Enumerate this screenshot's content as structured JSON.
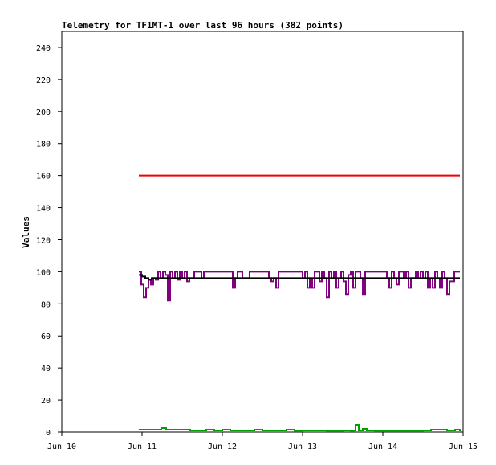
{
  "chart_data": {
    "type": "line",
    "title": "Telemetry for TF1MT-1 over last 96 hours (382 points)",
    "xlabel": "",
    "ylabel": "Values",
    "xlim": [
      "Jun 10",
      "Jun 15"
    ],
    "x_ticks": [
      "Jun 10",
      "Jun 11",
      "Jun 12",
      "Jun 13",
      "Jun 14",
      "Jun 15"
    ],
    "ylim": [
      0,
      250
    ],
    "y_ticks": [
      0,
      20,
      40,
      60,
      80,
      100,
      120,
      140,
      160,
      180,
      200,
      220,
      240
    ],
    "grid": false,
    "legend": "none",
    "series": [
      {
        "color": "#ee0000",
        "x": [
          10.96,
          14.96
        ],
        "values": [
          160,
          160
        ]
      },
      {
        "color": "#800080",
        "x": [
          10.96,
          10.99,
          11.02,
          11.05,
          11.08,
          11.11,
          11.14,
          11.17,
          11.2,
          11.23,
          11.26,
          11.29,
          11.32,
          11.35,
          11.38,
          11.41,
          11.44,
          11.47,
          11.5,
          11.53,
          11.56,
          11.59,
          11.62,
          11.65,
          11.68,
          11.71,
          11.74,
          11.77,
          11.8,
          11.83,
          11.86,
          11.89,
          11.92,
          11.95,
          11.98,
          12.01,
          12.04,
          12.07,
          12.1,
          12.13,
          12.16,
          12.19,
          12.22,
          12.25,
          12.28,
          12.31,
          12.34,
          12.37,
          12.4,
          12.43,
          12.46,
          12.49,
          12.52,
          12.55,
          12.58,
          12.61,
          12.64,
          12.67,
          12.7,
          12.73,
          12.76,
          12.79,
          12.82,
          12.85,
          12.88,
          12.91,
          12.94,
          12.97,
          13.0,
          13.03,
          13.06,
          13.09,
          13.12,
          13.15,
          13.18,
          13.21,
          13.24,
          13.27,
          13.3,
          13.33,
          13.36,
          13.39,
          13.42,
          13.45,
          13.48,
          13.51,
          13.54,
          13.57,
          13.6,
          13.63,
          13.66,
          13.69,
          13.72,
          13.75,
          13.78,
          13.81,
          13.84,
          13.87,
          13.9,
          13.93,
          13.96,
          13.99,
          14.02,
          14.05,
          14.08,
          14.11,
          14.14,
          14.17,
          14.2,
          14.23,
          14.26,
          14.29,
          14.32,
          14.35,
          14.38,
          14.41,
          14.44,
          14.47,
          14.5,
          14.53,
          14.56,
          14.59,
          14.62,
          14.65,
          14.68,
          14.71,
          14.74,
          14.77,
          14.8,
          14.83,
          14.86,
          14.89,
          14.92,
          14.96
        ],
        "values": [
          100,
          92,
          84,
          90,
          95,
          92,
          96,
          95,
          100,
          96,
          100,
          98,
          82,
          100,
          96,
          100,
          95,
          100,
          96,
          100,
          94,
          96,
          96,
          100,
          100,
          100,
          96,
          100,
          100,
          100,
          100,
          100,
          100,
          100,
          100,
          100,
          100,
          100,
          100,
          90,
          96,
          100,
          100,
          96,
          96,
          96,
          100,
          100,
          100,
          100,
          100,
          100,
          100,
          100,
          96,
          94,
          96,
          90,
          100,
          100,
          100,
          100,
          100,
          100,
          100,
          100,
          100,
          100,
          96,
          100,
          90,
          96,
          90,
          100,
          100,
          94,
          100,
          96,
          84,
          100,
          96,
          100,
          90,
          96,
          100,
          94,
          86,
          98,
          100,
          90,
          100,
          100,
          96,
          86,
          100,
          100,
          100,
          100,
          100,
          100,
          100,
          100,
          100,
          96,
          90,
          100,
          96,
          92,
          100,
          100,
          96,
          100,
          90,
          96,
          96,
          100,
          96,
          100,
          96,
          100,
          90,
          96,
          90,
          100,
          96,
          90,
          100,
          96,
          86,
          94,
          94,
          100,
          100,
          100
        ]
      },
      {
        "color": "#000000",
        "x": [
          10.96,
          11.0,
          11.04,
          11.08,
          11.12,
          11.2,
          11.3,
          11.4,
          11.5,
          11.6,
          11.7,
          11.8,
          11.9,
          12.0,
          12.2,
          12.4,
          12.6,
          12.8,
          13.0,
          13.2,
          13.4,
          13.6,
          13.8,
          14.0,
          14.2,
          14.4,
          14.6,
          14.8,
          14.96
        ],
        "values": [
          98,
          97,
          96,
          95,
          96,
          96,
          96,
          96,
          96,
          96,
          96,
          96,
          96,
          96,
          96,
          96,
          96,
          96,
          96,
          96,
          96,
          96,
          96,
          96,
          96,
          96,
          96,
          96,
          96
        ]
      },
      {
        "color": "#00a000",
        "x": [
          10.96,
          11.1,
          11.2,
          11.24,
          11.3,
          11.5,
          11.6,
          11.8,
          11.9,
          12.0,
          12.1,
          12.2,
          12.4,
          12.5,
          12.6,
          12.8,
          12.9,
          13.0,
          13.2,
          13.3,
          13.5,
          13.6,
          13.64,
          13.66,
          13.7,
          13.75,
          13.8,
          13.9,
          14.0,
          14.2,
          14.4,
          14.5,
          14.6,
          14.7,
          14.8,
          14.9,
          14.96
        ],
        "values": [
          1.5,
          1.5,
          1.5,
          2.5,
          1.5,
          1.5,
          1,
          1.5,
          1,
          1.5,
          1,
          1,
          1.5,
          1,
          1,
          1.5,
          0.5,
          1,
          1,
          0.5,
          1,
          0.5,
          1,
          4.5,
          1,
          2,
          1,
          0.5,
          0.5,
          0.5,
          0.5,
          1,
          1.5,
          1.5,
          1,
          1.5,
          0.5
        ]
      }
    ]
  }
}
